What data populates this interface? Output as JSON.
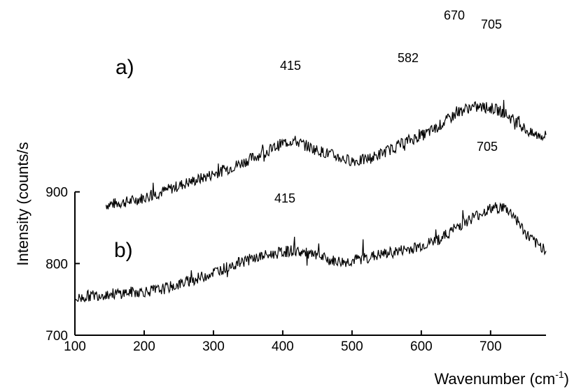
{
  "chart_data": {
    "type": "line",
    "xlabel": "Wavenumber (cm",
    "xlabel_sup": "-1",
    "xlabel_end": ")",
    "ylabel": "Intensity (counts/s",
    "xlim": [
      100,
      780
    ],
    "ylim": [
      700,
      1080
    ],
    "xticks": [
      "100",
      "200",
      "300",
      "400",
      "500",
      "600",
      "700"
    ],
    "yticks": [
      "700",
      "800",
      "900"
    ],
    "series": [
      {
        "name": "a)",
        "x": [
          145,
          160,
          180,
          200,
          220,
          240,
          260,
          280,
          300,
          320,
          340,
          360,
          380,
          400,
          415,
          430,
          450,
          470,
          490,
          510,
          530,
          550,
          570,
          582,
          600,
          620,
          640,
          655,
          670,
          690,
          705,
          720,
          740,
          760,
          780
        ],
        "y": [
          882,
          884,
          887,
          892,
          898,
          905,
          912,
          918,
          925,
          932,
          940,
          949,
          958,
          968,
          972,
          966,
          958,
          952,
          945,
          943,
          948,
          957,
          966,
          972,
          978,
          988,
          1002,
          1012,
          1018,
          1018,
          1016,
          1010,
          995,
          980,
          978
        ]
      },
      {
        "name": "b)",
        "x": [
          100,
          120,
          140,
          160,
          180,
          200,
          220,
          240,
          260,
          280,
          300,
          320,
          340,
          360,
          380,
          400,
          415,
          430,
          450,
          470,
          490,
          510,
          530,
          550,
          570,
          590,
          610,
          630,
          650,
          670,
          690,
          705,
          720,
          735,
          750,
          765,
          780
        ],
        "y": [
          750,
          755,
          757,
          758,
          760,
          761,
          763,
          768,
          774,
          780,
          788,
          795,
          802,
          808,
          812,
          816,
          818,
          815,
          810,
          804,
          802,
          806,
          810,
          814,
          818,
          822,
          828,
          836,
          850,
          862,
          872,
          878,
          878,
          866,
          842,
          828,
          820
        ]
      }
    ],
    "annotations": [
      {
        "text": "415",
        "series": "a)",
        "x": 415
      },
      {
        "text": "582",
        "series": "a)",
        "x": 582
      },
      {
        "text": "670",
        "series": "a)",
        "x": 670
      },
      {
        "text": "705",
        "series": "a)",
        "x": 705
      },
      {
        "text": "415",
        "series": "b)",
        "x": 415
      },
      {
        "text": "705",
        "series": "b)",
        "x": 705
      }
    ],
    "grid": false,
    "line_color": "#000000"
  }
}
